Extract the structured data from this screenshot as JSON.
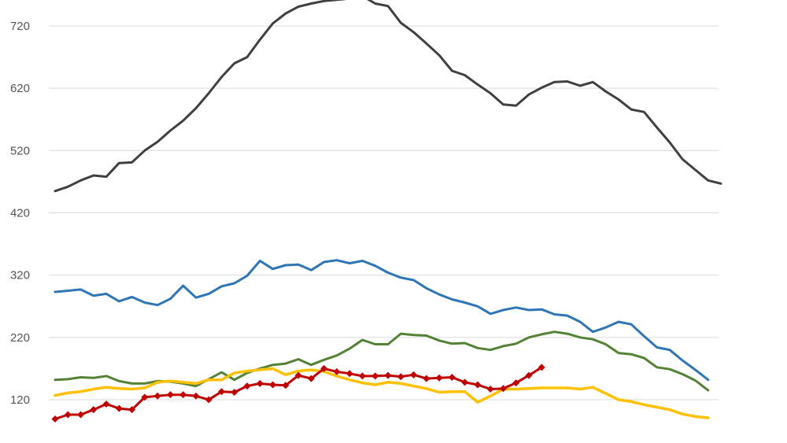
{
  "chart_data": {
    "type": "line",
    "title": "",
    "xlabel": "",
    "ylabel": "",
    "ylim": [
      88,
      742
    ],
    "yticks": [
      120,
      220,
      320,
      420,
      520,
      620,
      720
    ],
    "grid": true,
    "legend": "none",
    "series": [
      {
        "color": "#404040",
        "marker": "none",
        "values": [
          455,
          462,
          472,
          480,
          478,
          500,
          501,
          520,
          534,
          552,
          568,
          588,
          612,
          638,
          660,
          670,
          698,
          724,
          740,
          751,
          756,
          760,
          762,
          764,
          768,
          756,
          752,
          725,
          710,
          692,
          673,
          648,
          641,
          626,
          612,
          594,
          592,
          610,
          621,
          630,
          631,
          624,
          630,
          615,
          602,
          586,
          582,
          557,
          533,
          506,
          489,
          472,
          467
        ]
      },
      {
        "color": "#2e75b6",
        "marker": "none",
        "values": [
          293,
          295,
          297,
          287,
          290,
          278,
          285,
          276,
          272,
          282,
          303,
          284,
          290,
          302,
          307,
          319,
          343,
          330,
          336,
          337,
          328,
          341,
          344,
          339,
          343,
          335,
          324,
          316,
          312,
          299,
          289,
          281,
          276,
          270,
          258,
          264,
          268,
          264,
          265,
          257,
          255,
          245,
          229,
          236,
          245,
          241,
          222,
          204,
          200,
          183,
          168,
          152
        ]
      },
      {
        "color": "#548235",
        "marker": "none",
        "values": [
          152,
          153,
          156,
          155,
          158,
          150,
          146,
          146,
          150,
          149,
          146,
          142,
          153,
          164,
          152,
          163,
          170,
          176,
          178,
          185,
          176,
          184,
          191,
          202,
          216,
          209,
          209,
          226,
          224,
          223,
          215,
          210,
          211,
          203,
          200,
          206,
          210,
          220,
          225,
          229,
          226,
          220,
          217,
          209,
          195,
          193,
          187,
          172,
          169,
          161,
          151,
          135
        ]
      },
      {
        "color": "#ffc000",
        "marker": "none",
        "values": [
          127,
          131,
          133,
          137,
          140,
          138,
          137,
          139,
          148,
          150,
          148,
          146,
          152,
          152,
          163,
          166,
          168,
          170,
          160,
          166,
          168,
          165,
          158,
          152,
          147,
          144,
          148,
          146,
          142,
          138,
          132,
          133,
          133,
          116,
          126,
          137,
          137,
          138,
          139,
          139,
          139,
          137,
          140,
          130,
          120,
          117,
          112,
          108,
          104,
          97,
          93,
          91
        ]
      },
      {
        "color": "#c00000",
        "marker": "diamond",
        "values": [
          89,
          96,
          96,
          104,
          113,
          106,
          104,
          124,
          126,
          128,
          128,
          126,
          120,
          133,
          132,
          142,
          146,
          144,
          143,
          159,
          154,
          170,
          165,
          162,
          158,
          158,
          159,
          157,
          160,
          154,
          155,
          156,
          148,
          144,
          137,
          138,
          147,
          159,
          172
        ]
      }
    ]
  }
}
